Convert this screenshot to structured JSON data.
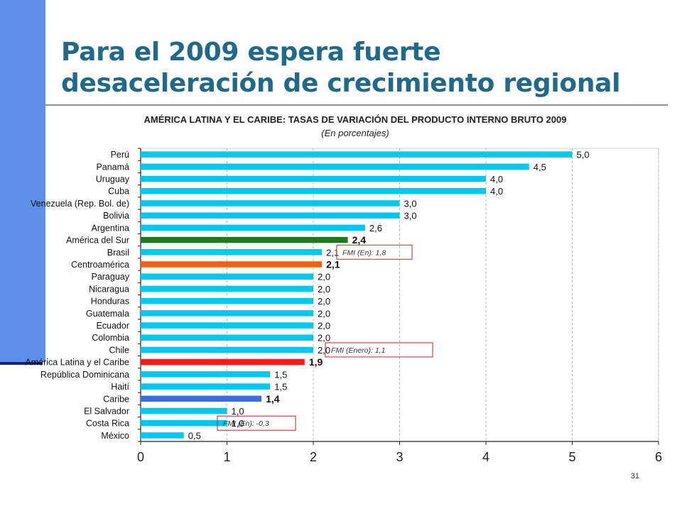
{
  "slide": {
    "title_line1": "Para el 2009 espera fuerte",
    "title_line2": "desaceleración de crecimiento regional",
    "page_number": "31"
  },
  "colors": {
    "accent_bar": "#5b8fe8",
    "title": "#1f6a8a",
    "bar_default": "#00c8f0",
    "bar_america_sur": "#1e7a1e",
    "bar_centroamerica": "#f06010",
    "bar_america_latina": "#ff1a1a",
    "bar_caribe": "#3a6ee0"
  },
  "chart_data": {
    "type": "bar",
    "orientation": "horizontal",
    "title": "AMÉRICA LATINA Y EL CARIBE: TASAS DE VARIACIÓN DEL PRODUCTO INTERNO BRUTO 2009",
    "subtitle": "(En porcentajes)",
    "categories": [
      "Perú",
      "Panamá",
      "Uruguay",
      "Cuba",
      "Venezuela (Rep. Bol. de)",
      "Bolivia",
      "Argentina",
      "América del Sur",
      "Brasil",
      "Centroamérica",
      "Paraguay",
      "Nicaragua",
      "Honduras",
      "Guatemala",
      "Ecuador",
      "Colombia",
      "Chile",
      "América Latina y el Caribe",
      "República Dominicana",
      "Haití",
      "Caribe",
      "El Salvador",
      "Costa Rica",
      "México"
    ],
    "values": [
      5.0,
      4.5,
      4.0,
      4.0,
      3.0,
      3.0,
      2.6,
      2.4,
      2.1,
      2.1,
      2.0,
      2.0,
      2.0,
      2.0,
      2.0,
      2.0,
      2.0,
      1.9,
      1.5,
      1.5,
      1.4,
      1.0,
      1.0,
      0.5
    ],
    "value_labels": [
      "5,0",
      "4,5",
      "4,0",
      "4,0",
      "3,0",
      "3,0",
      "2,6",
      "2,4",
      "2,1",
      "2,1",
      "2,0",
      "2,0",
      "2,0",
      "2,0",
      "2,0",
      "2,0",
      "2,0",
      "1,9",
      "1,5",
      "1,5",
      "1,4",
      "1,0",
      "1,0",
      "0,5"
    ],
    "highlighted": {
      "América del Sur": "#1e7a1e",
      "Centroamérica": "#f06010",
      "América Latina y el Caribe": "#ff1a1a",
      "Caribe": "#3a6ee0"
    },
    "xlim": [
      0,
      6
    ],
    "x_ticks": [
      "0",
      "1",
      "2",
      "3",
      "4",
      "5",
      "6"
    ],
    "grid": "vertical dashed",
    "annotations": [
      {
        "text": "FMI (En): 1,8",
        "category": "Brasil"
      },
      {
        "text": "FMI (Enero): 1,1",
        "category": "Chile"
      },
      {
        "text": "FMI (En): -0,3",
        "category": "Costa Rica"
      }
    ]
  }
}
